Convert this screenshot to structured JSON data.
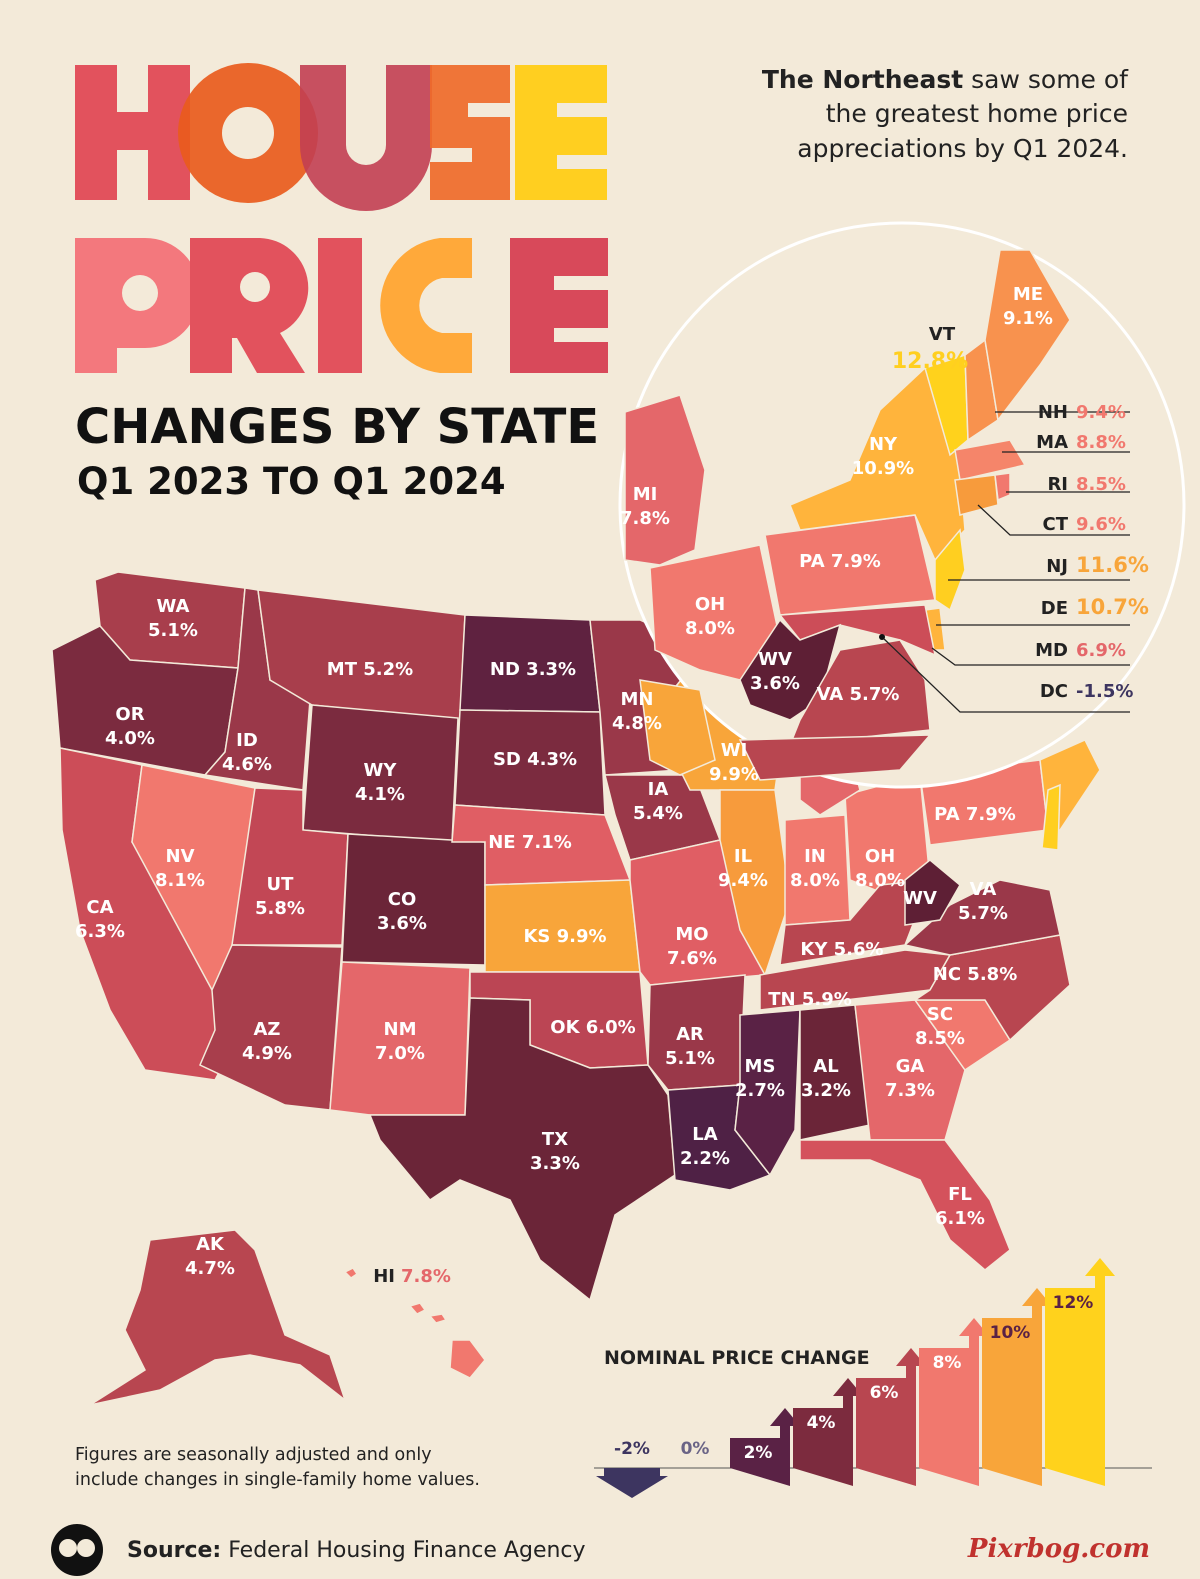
{
  "title": {
    "word1": "HOUSE",
    "word2": "PRICE",
    "line3": "CHANGES BY STATE",
    "line4": "Q1 2023 TO Q1 2024"
  },
  "callout": {
    "bold": "The Northeast",
    "line1_rest": " saw some of",
    "line2": "the greatest home price",
    "line3": "appreciations by Q1 2024."
  },
  "legend": {
    "title": "NOMINAL PRICE CHANGE",
    "steps": [
      {
        "label": "-2%",
        "value": -2,
        "color": "#3d3560"
      },
      {
        "label": "0%",
        "value": 0,
        "color": "#8d86a6"
      },
      {
        "label": "2%",
        "value": 2,
        "color": "#5a2245"
      },
      {
        "label": "4%",
        "value": 4,
        "color": "#7c2b3e"
      },
      {
        "label": "6%",
        "value": 6,
        "color": "#b84650"
      },
      {
        "label": "8%",
        "value": 8,
        "color": "#f1786e"
      },
      {
        "label": "10%",
        "value": 10,
        "color": "#f8a53a"
      },
      {
        "label": "12%",
        "value": 12,
        "color": "#ffd21c"
      }
    ]
  },
  "footnote": {
    "line1": "Figures are seasonally adjusted and only",
    "line2": "include changes in single-family home values."
  },
  "source": {
    "label": "Source:",
    "text": " Federal Housing Finance Agency"
  },
  "watermark": "Pixrbog.com",
  "states": [
    {
      "abbr": "WA",
      "value": "5.1%"
    },
    {
      "abbr": "OR",
      "value": "4.0%"
    },
    {
      "abbr": "CA",
      "value": "6.3%"
    },
    {
      "abbr": "NV",
      "value": "8.1%"
    },
    {
      "abbr": "ID",
      "value": "4.6%"
    },
    {
      "abbr": "MT",
      "value": "5.2%"
    },
    {
      "abbr": "WY",
      "value": "4.1%"
    },
    {
      "abbr": "UT",
      "value": "5.8%"
    },
    {
      "abbr": "CO",
      "value": "3.6%"
    },
    {
      "abbr": "AZ",
      "value": "4.9%"
    },
    {
      "abbr": "NM",
      "value": "7.0%"
    },
    {
      "abbr": "ND",
      "value": "3.3%"
    },
    {
      "abbr": "SD",
      "value": "4.3%"
    },
    {
      "abbr": "NE",
      "value": "7.1%"
    },
    {
      "abbr": "KS",
      "value": "9.9%"
    },
    {
      "abbr": "OK",
      "value": "6.0%"
    },
    {
      "abbr": "TX",
      "value": "3.3%"
    },
    {
      "abbr": "MN",
      "value": "4.8%"
    },
    {
      "abbr": "IA",
      "value": "5.4%"
    },
    {
      "abbr": "MO",
      "value": "7.6%"
    },
    {
      "abbr": "AR",
      "value": "5.1%"
    },
    {
      "abbr": "LA",
      "value": "2.2%"
    },
    {
      "abbr": "WI",
      "value": "9.9%"
    },
    {
      "abbr": "IL",
      "value": "9.4%"
    },
    {
      "abbr": "IN",
      "value": "8.0%"
    },
    {
      "abbr": "MI",
      "value": "7.8%"
    },
    {
      "abbr": "OH",
      "value": "8.0%"
    },
    {
      "abbr": "KY",
      "value": "5.6%"
    },
    {
      "abbr": "TN",
      "value": "5.9%"
    },
    {
      "abbr": "MS",
      "value": "2.7%"
    },
    {
      "abbr": "AL",
      "value": "3.2%"
    },
    {
      "abbr": "GA",
      "value": "7.3%"
    },
    {
      "abbr": "FL",
      "value": "6.1%"
    },
    {
      "abbr": "SC",
      "value": "8.5%"
    },
    {
      "abbr": "NC",
      "value": "5.8%"
    },
    {
      "abbr": "VA",
      "value": "5.7%"
    },
    {
      "abbr": "WV",
      "value": "3.6%"
    },
    {
      "abbr": "PA",
      "value": "7.9%"
    },
    {
      "abbr": "NY",
      "value": "10.9%"
    },
    {
      "abbr": "VT",
      "value": "12.8%"
    },
    {
      "abbr": "ME",
      "value": "9.1%"
    },
    {
      "abbr": "NH",
      "value": "9.4%"
    },
    {
      "abbr": "MA",
      "value": "8.8%"
    },
    {
      "abbr": "RI",
      "value": "8.5%"
    },
    {
      "abbr": "CT",
      "value": "9.6%"
    },
    {
      "abbr": "NJ",
      "value": "11.6%"
    },
    {
      "abbr": "DE",
      "value": "10.7%"
    },
    {
      "abbr": "MD",
      "value": "6.9%"
    },
    {
      "abbr": "DC",
      "value": "-1.5%"
    },
    {
      "abbr": "AK",
      "value": "4.7%"
    },
    {
      "abbr": "HI",
      "value": "7.8%"
    }
  ]
}
